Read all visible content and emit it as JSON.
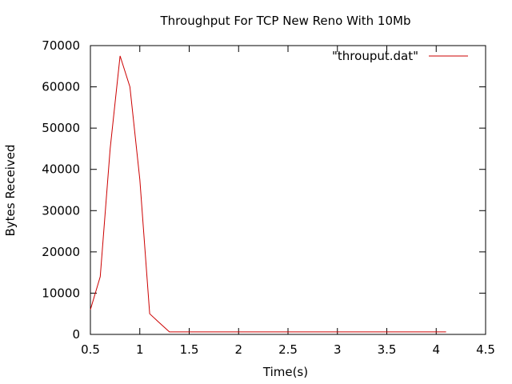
{
  "chart_data": {
    "type": "line",
    "title": "Throughput For TCP New Reno With 10Mb",
    "xlabel": "Time(s)",
    "ylabel": "Bytes Received",
    "xlim": [
      0.5,
      4.5
    ],
    "ylim": [
      0,
      70000
    ],
    "x_ticks": [
      0.5,
      1,
      1.5,
      2,
      2.5,
      3,
      3.5,
      4,
      4.5
    ],
    "x_tick_labels": [
      "0.5",
      "1",
      "1.5",
      "2",
      "2.5",
      "3",
      "3.5",
      "4",
      "4.5"
    ],
    "y_ticks": [
      0,
      10000,
      20000,
      30000,
      40000,
      50000,
      60000,
      70000
    ],
    "y_tick_labels": [
      "0",
      "10000",
      "20000",
      "30000",
      "40000",
      "50000",
      "60000",
      "70000"
    ],
    "grid": false,
    "legend_position": "top-right",
    "series": [
      {
        "name": "\"throuput.dat\"",
        "color": "#cc0000",
        "x": [
          0.5,
          0.6,
          0.7,
          0.8,
          0.9,
          1.0,
          1.1,
          1.2,
          1.3,
          1.4,
          1.5,
          1.6,
          1.7,
          1.8,
          1.9,
          2.0,
          2.1,
          2.2,
          2.3,
          2.4,
          2.5,
          2.6,
          2.7,
          2.8,
          2.9,
          3.0,
          3.1,
          3.2,
          3.3,
          3.4,
          3.5,
          3.6,
          3.7,
          3.8,
          3.9,
          4.0,
          4.1
        ],
        "y": [
          6000,
          14000,
          45000,
          67500,
          60000,
          37500,
          5000,
          2800,
          600,
          600,
          600,
          600,
          600,
          600,
          600,
          600,
          600,
          600,
          600,
          600,
          600,
          600,
          600,
          600,
          600,
          600,
          600,
          600,
          600,
          600,
          600,
          600,
          600,
          600,
          600,
          600,
          600
        ]
      }
    ]
  }
}
